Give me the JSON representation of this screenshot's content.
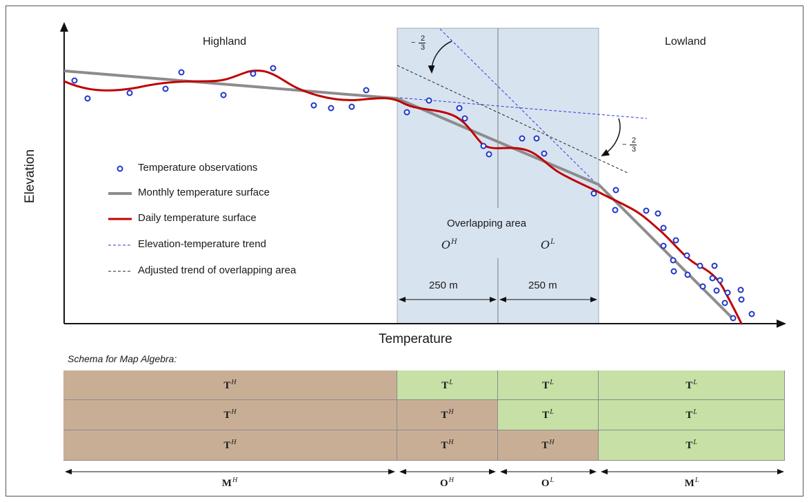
{
  "labels": {
    "highland": "Highland",
    "lowland": "Lowland",
    "x_axis": "Temperature",
    "y_axis": "Elevation",
    "overlapping_area": "Overlapping area",
    "o_high": "O",
    "o_high_sup": "H",
    "o_low": "O",
    "o_low_sup": "L",
    "dist_left": "250 m",
    "dist_right": "250 m",
    "slope_num": "2",
    "slope_den": "3",
    "slope_minus": "−"
  },
  "legend": [
    {
      "label": "Temperature observations",
      "symbol": "circle",
      "color": "#1f35c8"
    },
    {
      "label": "Monthly temperature surface",
      "symbol": "thick-line",
      "color": "#8c8c8c"
    },
    {
      "label": "Daily temperature surface",
      "symbol": "thick-line",
      "color": "#c00000"
    },
    {
      "label": "Elevation-temperature trend",
      "symbol": "dashed-line",
      "color": "#2a3ad6"
    },
    {
      "label": "Adjusted trend of overlapping area",
      "symbol": "dashed-line",
      "color": "#222222"
    }
  ],
  "schema": {
    "title": "Schema for Map Algebra:",
    "colors": {
      "H": "#c9ae96",
      "L": "#c6e0a6"
    },
    "rows": [
      [
        {
          "base": "T",
          "sup": "H"
        },
        {
          "base": "T",
          "sup": "L"
        },
        {
          "base": "T",
          "sup": "L"
        },
        {
          "base": "T",
          "sup": "L"
        }
      ],
      [
        {
          "base": "T",
          "sup": "H"
        },
        {
          "base": "T",
          "sup": "H"
        },
        {
          "base": "T",
          "sup": "L"
        },
        {
          "base": "T",
          "sup": "L"
        }
      ],
      [
        {
          "base": "T",
          "sup": "H"
        },
        {
          "base": "T",
          "sup": "H"
        },
        {
          "base": "T",
          "sup": "H"
        },
        {
          "base": "T",
          "sup": "L"
        }
      ]
    ],
    "spans": [
      {
        "base": "M",
        "sup": "H"
      },
      {
        "base": "O",
        "sup": "H"
      },
      {
        "base": "O",
        "sup": "L"
      },
      {
        "base": "M",
        "sup": "L"
      }
    ]
  },
  "colors": {
    "overlap_fill": "#d8e3f0",
    "observation": "#1f35c8",
    "monthly": "#8c8c8c",
    "daily": "#c00000",
    "trend": "#2a3ad6",
    "adjusted": "#222222"
  }
}
